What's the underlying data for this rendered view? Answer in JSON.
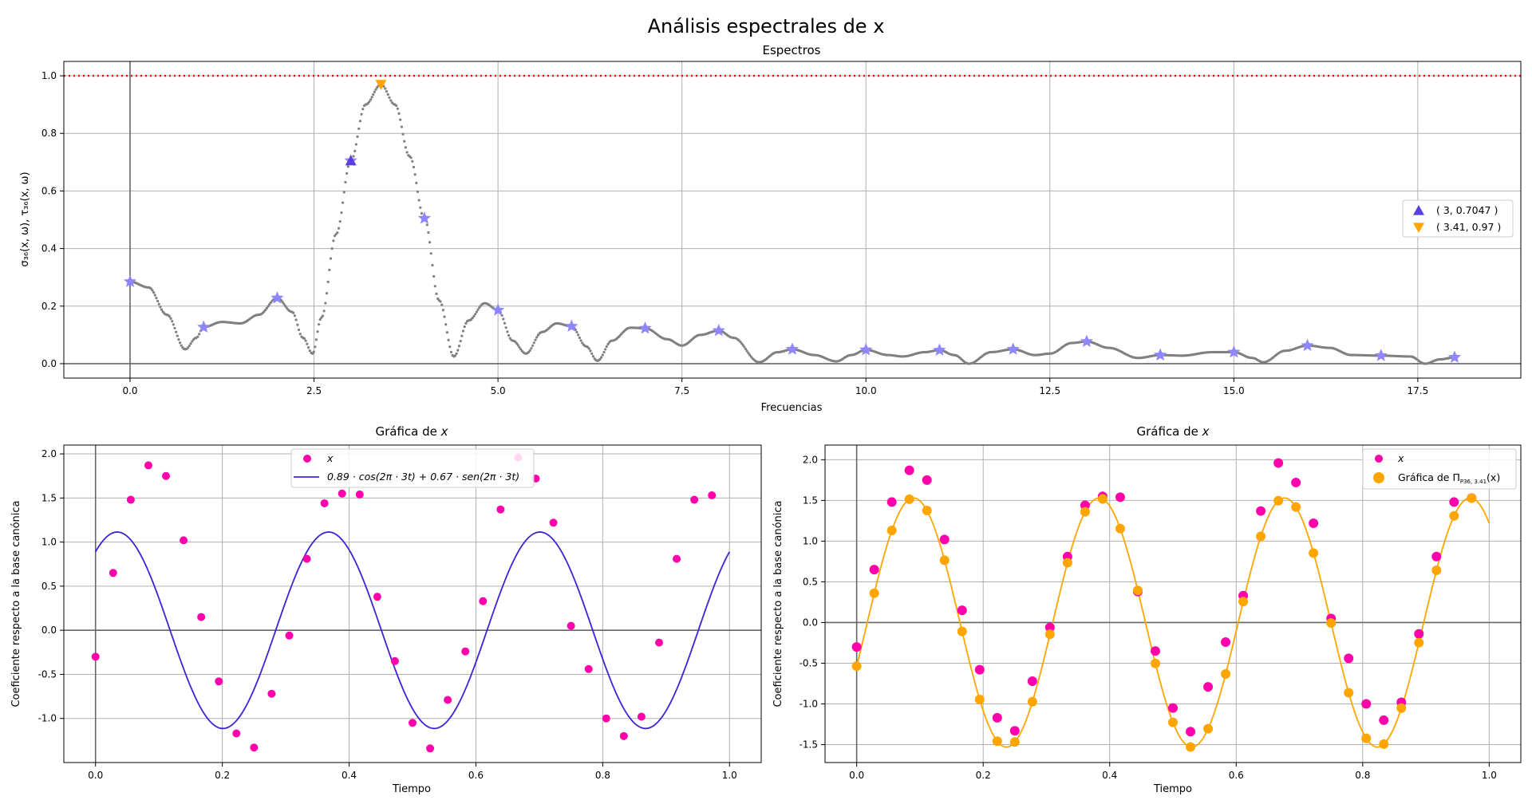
{
  "figure": {
    "title": "Análisis espectrales de x"
  },
  "chart_data": [
    {
      "type": "scatter",
      "title": "Espectros",
      "xlabel": "Frecuencias",
      "ylabel": "σ₃₆(x, ω), τ₃₆(x, ω)",
      "xlim": [
        -0.9,
        18.9
      ],
      "ylim": [
        -0.05,
        1.05
      ],
      "xticks": [
        "0.0",
        "2.5",
        "5.0",
        "7.5",
        "10.0",
        "12.5",
        "15.0",
        "17.5"
      ],
      "yticks": [
        "0.0",
        "0.2",
        "0.4",
        "0.6",
        "0.8",
        "1.0"
      ],
      "grid": true,
      "legend_position": "center-right",
      "reference_line": {
        "y": 1.0,
        "color": "#ff0000",
        "style": "dotted"
      },
      "spectrum_curve": {
        "color": "#808080",
        "points": [
          [
            0.0,
            0.285
          ],
          [
            0.25,
            0.265
          ],
          [
            0.5,
            0.17
          ],
          [
            0.75,
            0.05
          ],
          [
            0.9,
            0.09
          ],
          [
            1.0,
            0.127
          ],
          [
            1.25,
            0.145
          ],
          [
            1.5,
            0.14
          ],
          [
            1.75,
            0.17
          ],
          [
            2.0,
            0.228
          ],
          [
            2.2,
            0.18
          ],
          [
            2.35,
            0.09
          ],
          [
            2.48,
            0.035
          ],
          [
            2.6,
            0.16
          ],
          [
            2.8,
            0.45
          ],
          [
            3.0,
            0.705
          ],
          [
            3.2,
            0.9
          ],
          [
            3.41,
            0.97
          ],
          [
            3.6,
            0.9
          ],
          [
            3.8,
            0.72
          ],
          [
            4.0,
            0.505
          ],
          [
            4.2,
            0.22
          ],
          [
            4.4,
            0.025
          ],
          [
            4.6,
            0.15
          ],
          [
            4.82,
            0.21
          ],
          [
            5.0,
            0.186
          ],
          [
            5.2,
            0.08
          ],
          [
            5.38,
            0.035
          ],
          [
            5.6,
            0.11
          ],
          [
            5.8,
            0.14
          ],
          [
            6.0,
            0.13
          ],
          [
            6.2,
            0.06
          ],
          [
            6.35,
            0.01
          ],
          [
            6.55,
            0.08
          ],
          [
            6.8,
            0.125
          ],
          [
            7.0,
            0.123
          ],
          [
            7.3,
            0.085
          ],
          [
            7.5,
            0.063
          ],
          [
            7.75,
            0.1
          ],
          [
            8.0,
            0.115
          ],
          [
            8.2,
            0.09
          ],
          [
            8.55,
            0.005
          ],
          [
            8.8,
            0.04
          ],
          [
            9.0,
            0.05
          ],
          [
            9.3,
            0.03
          ],
          [
            9.6,
            0.008
          ],
          [
            9.8,
            0.03
          ],
          [
            10.0,
            0.048
          ],
          [
            10.3,
            0.03
          ],
          [
            10.5,
            0.025
          ],
          [
            10.8,
            0.04
          ],
          [
            11.0,
            0.047
          ],
          [
            11.2,
            0.03
          ],
          [
            11.4,
            0.0
          ],
          [
            11.7,
            0.04
          ],
          [
            12.0,
            0.05
          ],
          [
            12.3,
            0.03
          ],
          [
            12.5,
            0.035
          ],
          [
            12.8,
            0.072
          ],
          [
            13.0,
            0.077
          ],
          [
            13.3,
            0.055
          ],
          [
            13.7,
            0.02
          ],
          [
            14.0,
            0.03
          ],
          [
            14.3,
            0.028
          ],
          [
            14.7,
            0.04
          ],
          [
            15.0,
            0.04
          ],
          [
            15.25,
            0.02
          ],
          [
            15.4,
            0.005
          ],
          [
            15.7,
            0.045
          ],
          [
            16.0,
            0.063
          ],
          [
            16.3,
            0.055
          ],
          [
            16.6,
            0.03
          ],
          [
            17.0,
            0.028
          ],
          [
            17.4,
            0.025
          ],
          [
            17.6,
            0.0
          ],
          [
            17.8,
            0.015
          ],
          [
            18.0,
            0.022
          ]
        ]
      },
      "stars": {
        "color": "#8f87ff",
        "x": [
          0,
          1,
          2,
          3,
          4,
          5,
          6,
          7,
          8,
          9,
          10,
          11,
          12,
          13,
          14,
          15,
          16,
          17,
          18
        ],
        "y": [
          0.285,
          0.127,
          0.228,
          0.705,
          0.505,
          0.186,
          0.13,
          0.123,
          0.115,
          0.05,
          0.048,
          0.047,
          0.05,
          0.077,
          0.03,
          0.04,
          0.063,
          0.028,
          0.022
        ]
      },
      "markers": [
        {
          "label": "( 3, 0.7047 )",
          "x": 3.0,
          "y": 0.7047,
          "shape": "triangle-up",
          "color": "#5b3fe0"
        },
        {
          "label": "( 3.41, 0.97 )",
          "x": 3.41,
          "y": 0.97,
          "shape": "triangle-down",
          "color": "#ffa500"
        }
      ]
    },
    {
      "type": "scatter",
      "title": "Gráfica de x",
      "title_italic_part": "x",
      "xlabel": "Tiempo",
      "ylabel": "Coeficiente respecto a la base canónica",
      "xlim": [
        -0.05,
        1.05
      ],
      "ylim": [
        -1.5,
        2.1
      ],
      "xticks": [
        "0.0",
        "0.2",
        "0.4",
        "0.6",
        "0.8",
        "1.0"
      ],
      "yticks": [
        "-1.0",
        "-0.5",
        "0.0",
        "0.5",
        "1.0",
        "1.5",
        "2.0"
      ],
      "grid": true,
      "legend_position": "top-center",
      "series": [
        {
          "name": "x",
          "kind": "points",
          "color": "#ff00aa",
          "t": [
            0,
            0.02778,
            0.05556,
            0.08333,
            0.11111,
            0.13889,
            0.16667,
            0.19444,
            0.22222,
            0.25,
            0.27778,
            0.30556,
            0.33333,
            0.36111,
            0.38889,
            0.41667,
            0.44444,
            0.47222,
            0.5,
            0.52778,
            0.55556,
            0.58333,
            0.61111,
            0.63889,
            0.66667,
            0.69444,
            0.72222,
            0.75,
            0.77778,
            0.80556,
            0.83333,
            0.86111,
            0.88889,
            0.91667,
            0.94444,
            0.97222
          ],
          "values": [
            -0.3,
            0.65,
            1.48,
            1.87,
            1.75,
            1.02,
            0.15,
            -0.58,
            -1.17,
            -1.33,
            -0.72,
            -0.06,
            0.81,
            1.44,
            1.55,
            1.54,
            0.38,
            -0.35,
            -1.05,
            -1.34,
            -0.79,
            -0.24,
            0.33,
            1.37,
            1.96,
            1.72,
            1.22,
            0.05,
            -0.44,
            -1.0,
            -1.2,
            -0.98,
            -0.14,
            0.81,
            1.48,
            1.53
          ]
        },
        {
          "name": "0.89 · cos(2π · 3t) + 0.67 · sen(2π · 3t)",
          "kind": "curve",
          "color": "#3b24d6",
          "a": 0.89,
          "b": 0.67,
          "freq": 3
        }
      ]
    },
    {
      "type": "scatter",
      "title": "Gráfica de x",
      "title_italic_part": "x",
      "xlabel": "Tiempo",
      "ylabel": "Coeficiente respecto a la base canónica",
      "xlim": [
        -0.05,
        1.05
      ],
      "ylim": [
        -1.72,
        2.18
      ],
      "xticks": [
        "0.0",
        "0.2",
        "0.4",
        "0.6",
        "0.8",
        "1.0"
      ],
      "yticks": [
        "-1.5",
        "-1.0",
        "-0.5",
        "0.0",
        "0.5",
        "1.0",
        "1.5",
        "2.0"
      ],
      "grid": true,
      "legend_position": "top-right",
      "series": [
        {
          "name": "x",
          "kind": "points",
          "color": "#ff00aa",
          "same_as": "x"
        },
        {
          "name": "Gráfica de Π",
          "name_sub": "P36, 3.41",
          "name_tail": "(x)",
          "kind": "points+curve",
          "color": "#ffa500",
          "amplitude": 1.53,
          "freq": 3.41,
          "phase": -0.358
        }
      ]
    }
  ]
}
